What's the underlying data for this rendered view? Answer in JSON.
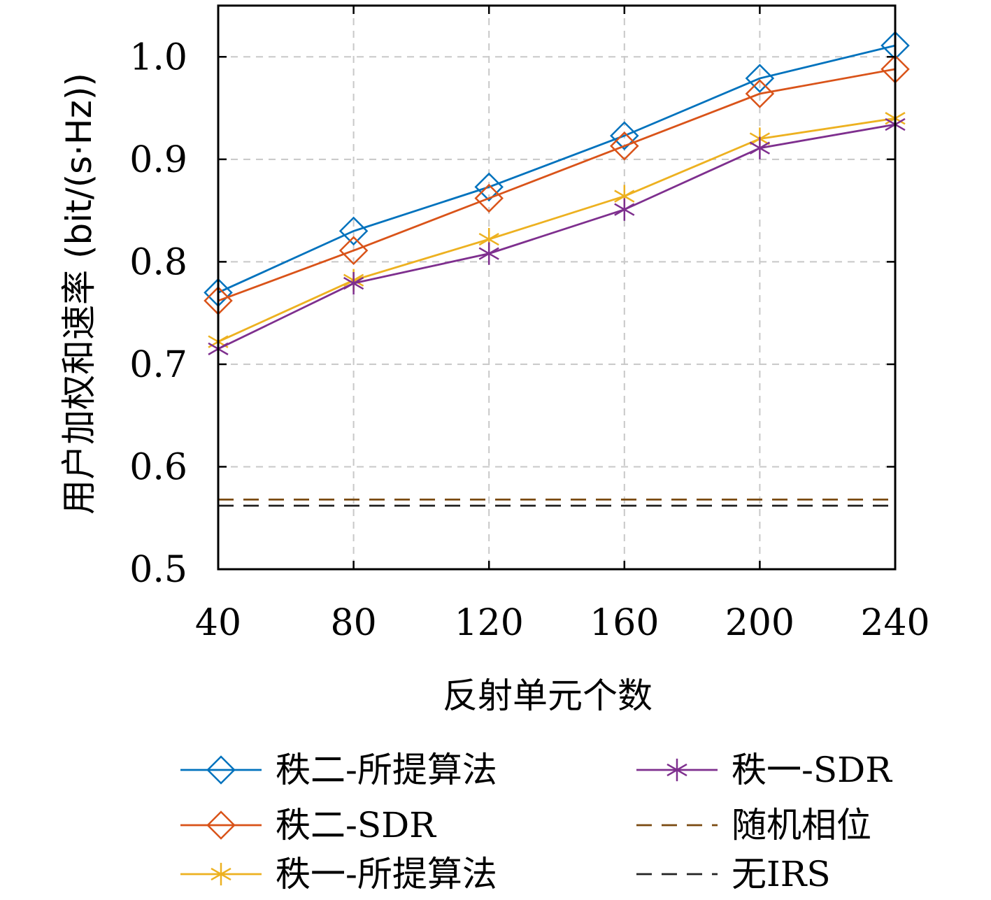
{
  "chart_data": {
    "type": "line",
    "xlabel": "反射单元个数",
    "ylabel": "用户加权和速率 (bit/(s·Hz))",
    "x": [
      40,
      80,
      120,
      160,
      200,
      240
    ],
    "xticks": [
      "40",
      "80",
      "120",
      "160",
      "200",
      "240"
    ],
    "yticks": [
      "0.5",
      "0.6",
      "0.7",
      "0.8",
      "0.9",
      "1.0"
    ],
    "xlim": [
      40,
      240
    ],
    "ylim": [
      0.5,
      1.05
    ],
    "grid": true,
    "legend_position": "bottom, outside, two columns",
    "series": [
      {
        "name": "秩二-所提算法",
        "color": "#0072BD",
        "marker": "diamond",
        "style": "solid",
        "values": [
          0.77,
          0.83,
          0.873,
          0.923,
          0.979,
          1.011
        ]
      },
      {
        "name": "秩二-SDR",
        "color": "#D95319",
        "marker": "diamond",
        "style": "solid",
        "values": [
          0.762,
          0.811,
          0.862,
          0.913,
          0.964,
          0.988
        ]
      },
      {
        "name": "秩一-所提算法",
        "color": "#EDB120",
        "marker": "asterisk",
        "style": "solid",
        "values": [
          0.722,
          0.782,
          0.822,
          0.864,
          0.92,
          0.94
        ]
      },
      {
        "name": "秩一-SDR",
        "color": "#7E2F8E",
        "marker": "asterisk",
        "style": "solid",
        "values": [
          0.715,
          0.779,
          0.808,
          0.851,
          0.911,
          0.934
        ]
      },
      {
        "name": "随机相位",
        "color": "#7A4A10",
        "marker": "none",
        "style": "dashed",
        "values": [
          0.568,
          0.568,
          0.568,
          0.568,
          0.568,
          0.568
        ]
      },
      {
        "name": "无IRS",
        "color": "#222222",
        "marker": "none",
        "style": "dashed",
        "values": [
          0.562,
          0.562,
          0.562,
          0.562,
          0.562,
          0.562
        ]
      }
    ]
  }
}
